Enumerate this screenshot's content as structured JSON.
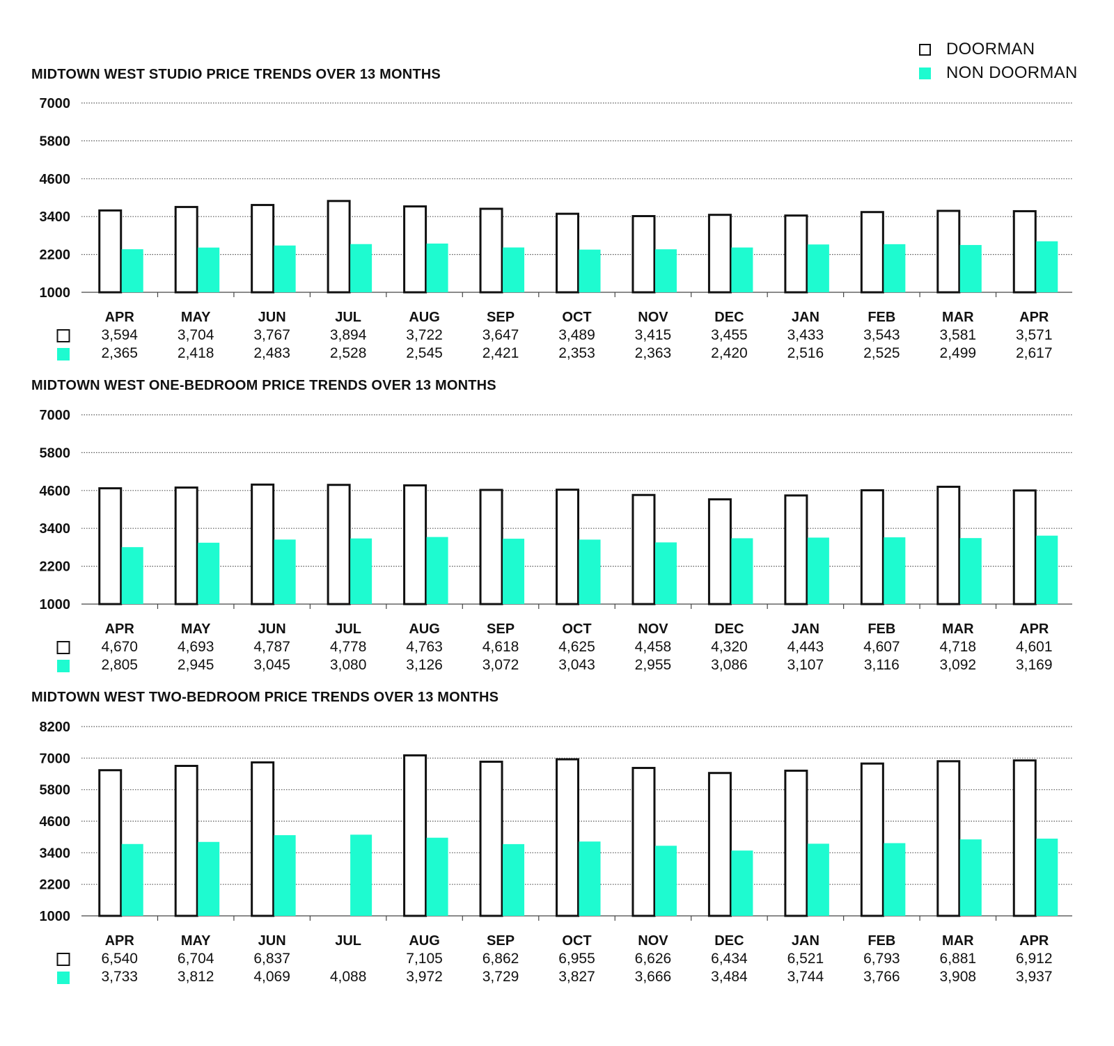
{
  "legend": {
    "doorman_label": "DOORMAN",
    "non_doorman_label": "NON DOORMAN"
  },
  "colors": {
    "doorman_fill": "#ffffff",
    "doorman_stroke": "#111111",
    "non_doorman_fill": "#1efbd0",
    "grid": "#555555",
    "text": "#111111"
  },
  "chart_data": [
    {
      "type": "bar",
      "title": "MIDTOWN WEST STUDIO PRICE TRENDS OVER 13 MONTHS",
      "categories": [
        "APR",
        "MAY",
        "JUN",
        "JUL",
        "AUG",
        "SEP",
        "OCT",
        "NOV",
        "DEC",
        "JAN",
        "FEB",
        "MAR",
        "APR"
      ],
      "yticks": [
        7000,
        5800,
        4600,
        3400,
        2200,
        1000
      ],
      "ylim": [
        1000,
        7000
      ],
      "grid": true,
      "series": [
        {
          "name": "DOORMAN",
          "values": [
            3594,
            3704,
            3767,
            3894,
            3722,
            3647,
            3489,
            3415,
            3455,
            3433,
            3543,
            3581,
            3571
          ],
          "labels": [
            "3,594",
            "3,704",
            "3,767",
            "3,894",
            "3,722",
            "3,647",
            "3,489",
            "3,415",
            "3,455",
            "3,433",
            "3,543",
            "3,581",
            "3,571"
          ]
        },
        {
          "name": "NON DOORMAN",
          "values": [
            2365,
            2418,
            2483,
            2528,
            2545,
            2421,
            2353,
            2363,
            2420,
            2516,
            2525,
            2499,
            2617
          ],
          "labels": [
            "2,365",
            "2,418",
            "2,483",
            "2,528",
            "2,545",
            "2,421",
            "2,353",
            "2,363",
            "2,420",
            "2,516",
            "2,525",
            "2,499",
            "2,617"
          ]
        }
      ]
    },
    {
      "type": "bar",
      "title": "MIDTOWN WEST ONE-BEDROOM PRICE TRENDS OVER 13 MONTHS",
      "categories": [
        "APR",
        "MAY",
        "JUN",
        "JUL",
        "AUG",
        "SEP",
        "OCT",
        "NOV",
        "DEC",
        "JAN",
        "FEB",
        "MAR",
        "APR"
      ],
      "yticks": [
        7000,
        5800,
        4600,
        3400,
        2200,
        1000
      ],
      "ylim": [
        1000,
        7000
      ],
      "grid": true,
      "series": [
        {
          "name": "DOORMAN",
          "values": [
            4670,
            4693,
            4787,
            4778,
            4763,
            4618,
            4625,
            4458,
            4320,
            4443,
            4607,
            4718,
            4601
          ],
          "labels": [
            "4,670",
            "4,693",
            "4,787",
            "4,778",
            "4,763",
            "4,618",
            "4,625",
            "4,458",
            "4,320",
            "4,443",
            "4,607",
            "4,718",
            "4,601"
          ]
        },
        {
          "name": "NON DOORMAN",
          "values": [
            2805,
            2945,
            3045,
            3080,
            3126,
            3072,
            3043,
            2955,
            3086,
            3107,
            3116,
            3092,
            3169
          ],
          "labels": [
            "2,805",
            "2,945",
            "3,045",
            "3,080",
            "3,126",
            "3,072",
            "3,043",
            "2,955",
            "3,086",
            "3,107",
            "3,116",
            "3,092",
            "3,169"
          ]
        }
      ]
    },
    {
      "type": "bar",
      "title": "MIDTOWN WEST TWO-BEDROOM PRICE TRENDS OVER 13 MONTHS",
      "categories": [
        "APR",
        "MAY",
        "JUN",
        "JUL",
        "AUG",
        "SEP",
        "OCT",
        "NOV",
        "DEC",
        "JAN",
        "FEB",
        "MAR",
        "APR"
      ],
      "yticks": [
        8200,
        7000,
        5800,
        4600,
        3400,
        2200,
        1000
      ],
      "ylim": [
        1000,
        8200
      ],
      "grid": true,
      "series": [
        {
          "name": "DOORMAN",
          "values": [
            6540,
            6704,
            6837,
            null,
            7105,
            6862,
            6955,
            6626,
            6434,
            6521,
            6793,
            6881,
            6912
          ],
          "labels": [
            "6,540",
            "6,704",
            "6,837",
            "",
            "7,105",
            "6,862",
            "6,955",
            "6,626",
            "6,434",
            "6,521",
            "6,793",
            "6,881",
            "6,912"
          ]
        },
        {
          "name": "NON DOORMAN",
          "values": [
            3733,
            3812,
            4069,
            4088,
            3972,
            3729,
            3827,
            3666,
            3484,
            3744,
            3766,
            3908,
            3937
          ],
          "labels": [
            "3,733",
            "3,812",
            "4,069",
            "4,088",
            "3,972",
            "3,729",
            "3,827",
            "3,666",
            "3,484",
            "3,744",
            "3,766",
            "3,908",
            "3,937"
          ]
        }
      ]
    }
  ]
}
